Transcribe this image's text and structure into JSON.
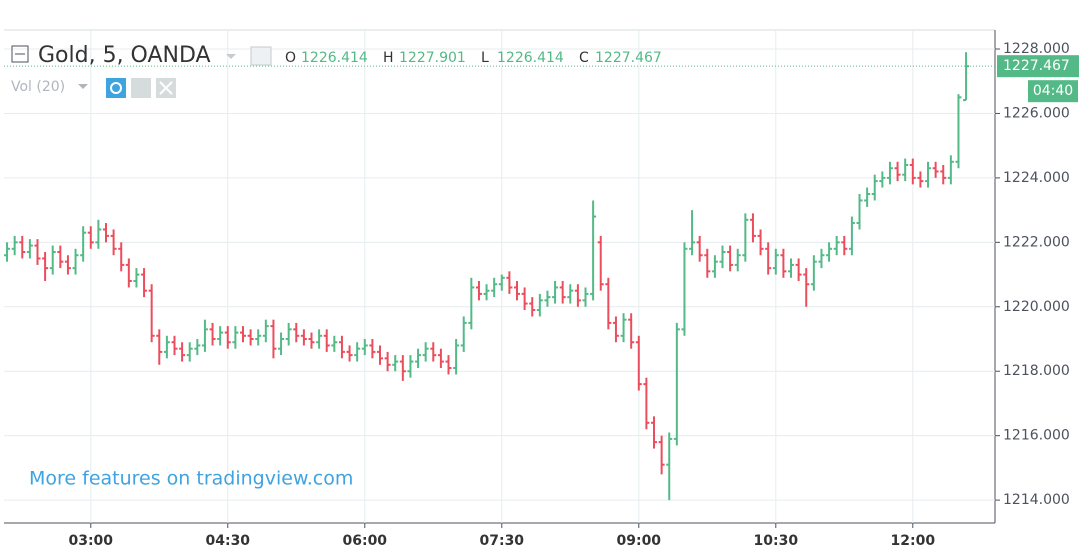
{
  "chart_data": {
    "type": "ohlc",
    "title": "Gold, 5, OANDA",
    "ohlc_legend": [
      {
        "label": "O",
        "value": 1226.414
      },
      {
        "label": "H",
        "value": 1227.901
      },
      {
        "label": "L",
        "value": 1226.414
      },
      {
        "label": "C",
        "value": 1227.467
      }
    ],
    "indicator": "Vol (20)",
    "watermark": "More features on tradingview.com",
    "last_price": 1227.467,
    "countdown": "04:40",
    "up_color": "#53b987",
    "down_color": "#eb4d5c",
    "grid": true,
    "xlim": [
      123,
      774
    ],
    "xticks": [
      {
        "value": 180,
        "label": "03:00"
      },
      {
        "value": 270,
        "label": "04:30"
      },
      {
        "value": 360,
        "label": "06:00"
      },
      {
        "value": 450,
        "label": "07:30"
      },
      {
        "value": 540,
        "label": "09:00"
      },
      {
        "value": 630,
        "label": "10:30"
      },
      {
        "value": 720,
        "label": "12:00"
      }
    ],
    "ylim": [
      1213.29,
      1228.59
    ],
    "yticks": [
      {
        "value": 1214,
        "label": "1214.000"
      },
      {
        "value": 1216,
        "label": "1216.000"
      },
      {
        "value": 1218,
        "label": "1218.000"
      },
      {
        "value": 1220,
        "label": "1220.000"
      },
      {
        "value": 1222,
        "label": "1222.000"
      },
      {
        "value": 1224,
        "label": "1224.000"
      },
      {
        "value": 1226,
        "label": "1226.000"
      },
      {
        "value": 1228,
        "label": "1228.000"
      }
    ],
    "x": [
      125,
      130,
      135,
      140,
      145,
      150,
      155,
      160,
      165,
      170,
      175,
      180,
      185,
      190,
      195,
      200,
      205,
      210,
      215,
      220,
      225,
      230,
      235,
      240,
      245,
      250,
      255,
      260,
      265,
      270,
      275,
      280,
      285,
      290,
      295,
      300,
      305,
      310,
      315,
      320,
      325,
      330,
      335,
      340,
      345,
      350,
      355,
      360,
      365,
      370,
      375,
      380,
      385,
      390,
      395,
      400,
      405,
      410,
      415,
      420,
      425,
      430,
      435,
      440,
      445,
      450,
      455,
      460,
      465,
      470,
      475,
      480,
      485,
      490,
      495,
      500,
      505,
      510,
      515,
      520,
      525,
      530,
      535,
      540,
      545,
      550,
      555,
      560,
      565,
      570,
      575,
      580,
      585,
      590,
      595,
      600,
      605,
      610,
      615,
      620,
      625,
      630,
      635,
      640,
      645,
      650,
      655,
      660,
      665,
      670,
      675,
      680,
      685,
      690,
      695,
      700,
      705,
      710,
      715,
      720,
      725,
      730,
      735,
      740,
      745,
      750,
      755
    ],
    "open": [
      1221.6,
      1221.8,
      1222.0,
      1221.7,
      1221.9,
      1221.5,
      1221.2,
      1221.7,
      1221.4,
      1221.2,
      1221.6,
      1222.3,
      1222.0,
      1222.4,
      1222.2,
      1221.8,
      1221.3,
      1220.8,
      1221.0,
      1220.5,
      1219.1,
      1218.6,
      1218.9,
      1218.7,
      1218.5,
      1218.7,
      1218.8,
      1219.3,
      1219.0,
      1219.2,
      1218.9,
      1219.2,
      1219.1,
      1219.0,
      1219.1,
      1219.4,
      1218.7,
      1219.0,
      1219.3,
      1219.1,
      1219.0,
      1218.9,
      1219.1,
      1218.8,
      1218.9,
      1218.6,
      1218.5,
      1218.7,
      1218.8,
      1218.6,
      1218.4,
      1218.2,
      1218.3,
      1218.0,
      1218.3,
      1218.5,
      1218.7,
      1218.5,
      1218.3,
      1218.1,
      1218.8,
      1219.5,
      1220.6,
      1220.4,
      1220.5,
      1220.7,
      1220.9,
      1220.6,
      1220.4,
      1220.1,
      1219.9,
      1220.2,
      1220.3,
      1220.6,
      1220.3,
      1220.5,
      1220.2,
      1220.4,
      1222.0,
      1220.7,
      1219.5,
      1219.1,
      1219.6,
      1218.9,
      1217.6,
      1216.4,
      1215.8,
      1215.1,
      1215.9,
      1219.3,
      1221.8,
      1222.0,
      1221.6,
      1221.1,
      1221.4,
      1221.7,
      1221.3,
      1221.6,
      1222.7,
      1222.2,
      1221.8,
      1221.2,
      1221.6,
      1221.1,
      1221.3,
      1221.0,
      1220.7,
      1221.4,
      1221.6,
      1221.8,
      1222.0,
      1221.8,
      1222.6,
      1223.3,
      1223.5,
      1223.9,
      1224.0,
      1224.3,
      1224.1,
      1224.4,
      1224.0,
      1223.9,
      1224.3,
      1224.2,
      1224.0,
      1224.5,
      1226.414
    ],
    "high": [
      1222.0,
      1222.2,
      1222.2,
      1222.1,
      1222.1,
      1221.7,
      1221.9,
      1221.9,
      1221.6,
      1221.8,
      1222.5,
      1222.5,
      1222.7,
      1222.6,
      1222.4,
      1222.0,
      1221.5,
      1221.2,
      1221.2,
      1220.7,
      1219.3,
      1219.1,
      1219.1,
      1218.9,
      1218.9,
      1219.0,
      1219.6,
      1219.5,
      1219.4,
      1219.4,
      1219.4,
      1219.4,
      1219.3,
      1219.3,
      1219.6,
      1219.6,
      1219.2,
      1219.5,
      1219.5,
      1219.3,
      1219.2,
      1219.3,
      1219.3,
      1219.1,
      1219.1,
      1218.8,
      1218.9,
      1219.0,
      1219.0,
      1218.8,
      1218.6,
      1218.5,
      1218.5,
      1218.5,
      1218.7,
      1218.9,
      1218.9,
      1218.7,
      1218.5,
      1219.0,
      1219.7,
      1220.9,
      1220.8,
      1220.7,
      1220.9,
      1221.0,
      1221.1,
      1220.8,
      1220.6,
      1220.3,
      1220.4,
      1220.5,
      1220.8,
      1220.8,
      1220.7,
      1220.7,
      1220.6,
      1223.3,
      1222.2,
      1220.9,
      1219.7,
      1219.8,
      1219.8,
      1219.1,
      1217.8,
      1216.6,
      1216.0,
      1216.1,
      1219.5,
      1222.0,
      1223.0,
      1222.2,
      1221.8,
      1221.6,
      1221.9,
      1221.9,
      1221.8,
      1222.9,
      1222.9,
      1222.4,
      1222.0,
      1221.8,
      1221.8,
      1221.5,
      1221.5,
      1221.2,
      1221.6,
      1221.8,
      1222.0,
      1222.2,
      1222.2,
      1222.8,
      1223.5,
      1223.7,
      1224.1,
      1224.2,
      1224.5,
      1224.5,
      1224.6,
      1224.6,
      1224.2,
      1224.5,
      1224.5,
      1224.4,
      1224.7,
      1226.6,
      1227.901
    ],
    "low": [
      1221.4,
      1221.6,
      1221.5,
      1221.5,
      1221.3,
      1220.8,
      1221.0,
      1221.2,
      1221.0,
      1221.0,
      1221.4,
      1221.8,
      1221.8,
      1222.0,
      1221.6,
      1221.1,
      1220.6,
      1220.6,
      1220.3,
      1218.9,
      1218.2,
      1218.4,
      1218.5,
      1218.3,
      1218.3,
      1218.5,
      1218.6,
      1218.8,
      1218.8,
      1218.7,
      1218.7,
      1218.9,
      1218.8,
      1218.8,
      1218.9,
      1218.4,
      1218.5,
      1218.8,
      1218.9,
      1218.8,
      1218.7,
      1218.7,
      1218.6,
      1218.6,
      1218.4,
      1218.3,
      1218.3,
      1218.5,
      1218.4,
      1218.2,
      1218.0,
      1218.0,
      1217.7,
      1217.8,
      1218.1,
      1218.3,
      1218.3,
      1218.1,
      1217.9,
      1217.9,
      1218.6,
      1219.3,
      1220.2,
      1220.2,
      1220.3,
      1220.5,
      1220.4,
      1220.2,
      1219.9,
      1219.7,
      1219.7,
      1220.0,
      1220.1,
      1220.1,
      1220.1,
      1220.0,
      1220.0,
      1220.2,
      1220.5,
      1219.3,
      1218.9,
      1218.9,
      1218.7,
      1217.4,
      1216.2,
      1215.6,
      1214.8,
      1214.0,
      1215.7,
      1219.1,
      1221.6,
      1221.4,
      1220.9,
      1220.9,
      1221.2,
      1221.1,
      1221.1,
      1221.4,
      1222.0,
      1221.6,
      1221.0,
      1221.0,
      1220.9,
      1220.9,
      1220.8,
      1220.0,
      1220.5,
      1221.2,
      1221.4,
      1221.6,
      1221.6,
      1221.6,
      1222.4,
      1223.1,
      1223.3,
      1223.7,
      1223.8,
      1223.9,
      1223.9,
      1223.8,
      1223.7,
      1223.7,
      1224.0,
      1223.8,
      1223.8,
      1224.3,
      1226.414
    ],
    "close": [
      1221.8,
      1222.0,
      1221.7,
      1221.9,
      1221.5,
      1221.2,
      1221.7,
      1221.4,
      1221.2,
      1221.6,
      1222.3,
      1222.0,
      1222.4,
      1222.2,
      1221.8,
      1221.3,
      1220.8,
      1221.0,
      1220.5,
      1219.1,
      1218.6,
      1218.9,
      1218.7,
      1218.5,
      1218.7,
      1218.8,
      1219.3,
      1219.0,
      1219.2,
      1218.9,
      1219.2,
      1219.1,
      1219.0,
      1219.1,
      1219.4,
      1218.7,
      1219.0,
      1219.3,
      1219.1,
      1219.0,
      1218.9,
      1219.1,
      1218.8,
      1218.9,
      1218.6,
      1218.5,
      1218.7,
      1218.8,
      1218.6,
      1218.4,
      1218.2,
      1218.3,
      1218.0,
      1218.3,
      1218.5,
      1218.7,
      1218.5,
      1218.3,
      1218.1,
      1218.8,
      1219.5,
      1220.6,
      1220.4,
      1220.5,
      1220.7,
      1220.9,
      1220.6,
      1220.4,
      1220.1,
      1219.9,
      1220.2,
      1220.3,
      1220.6,
      1220.3,
      1220.5,
      1220.2,
      1220.4,
      1222.8,
      1220.7,
      1219.5,
      1219.1,
      1219.6,
      1218.9,
      1217.6,
      1216.4,
      1215.8,
      1215.1,
      1215.9,
      1219.3,
      1221.8,
      1222.0,
      1221.6,
      1221.1,
      1221.4,
      1221.7,
      1221.3,
      1221.6,
      1222.7,
      1222.2,
      1221.8,
      1221.2,
      1221.6,
      1221.1,
      1221.3,
      1221.0,
      1220.7,
      1221.4,
      1221.6,
      1221.8,
      1222.0,
      1221.8,
      1222.6,
      1223.3,
      1223.5,
      1223.9,
      1224.0,
      1224.3,
      1224.1,
      1224.4,
      1224.0,
      1223.9,
      1224.3,
      1224.2,
      1224.0,
      1224.5,
      1226.5,
      1227.467
    ]
  }
}
